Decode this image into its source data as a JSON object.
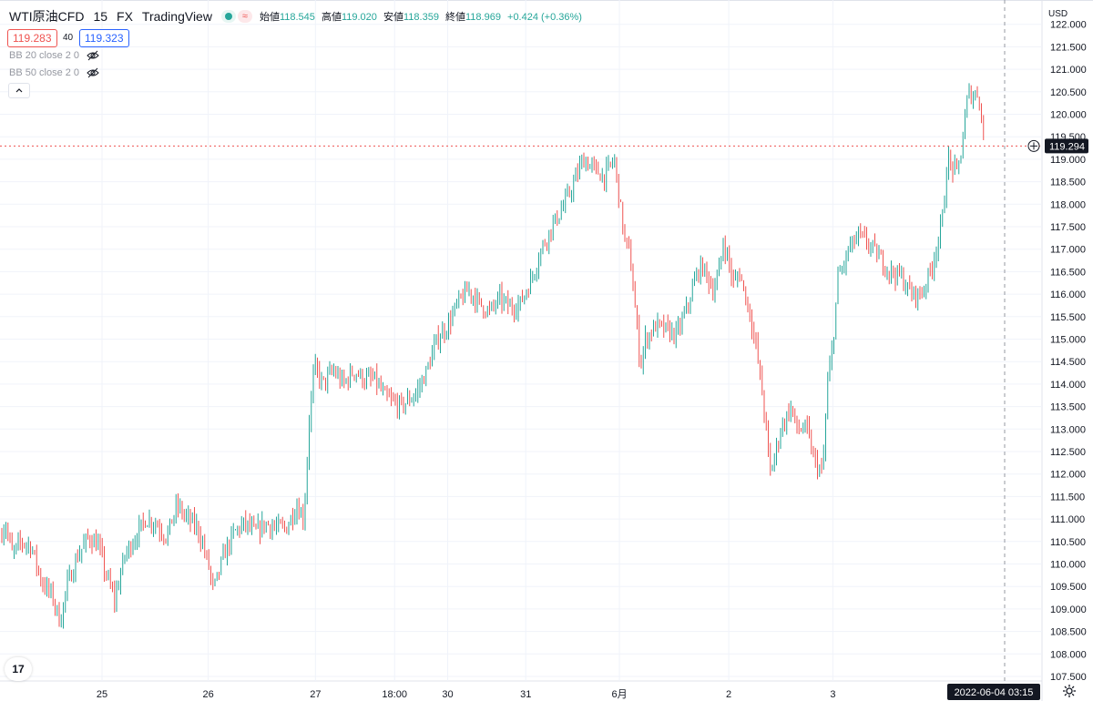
{
  "header": {
    "symbol": "WTI原油CFD",
    "interval": "15",
    "exchange": "FX",
    "source": "TradingView",
    "open_label": "始値",
    "open": "118.545",
    "high_label": "高値",
    "high": "119.020",
    "low_label": "安値",
    "low": "118.359",
    "close_label": "終値",
    "close": "118.969",
    "change": "+0.424 (+0.36%)"
  },
  "quote": {
    "bid": "119.283",
    "spread": "40",
    "ask": "119.323"
  },
  "indicators": [
    {
      "label": "BB 20 close 2 0",
      "icon": "eye-off-icon"
    },
    {
      "label": "BB 50 close 2 0",
      "icon": "eye-off-icon"
    }
  ],
  "axis": {
    "currency": "USD",
    "current_price": "119.294",
    "crosshair_time": "2022-06-04  03:15"
  },
  "colors": {
    "up": "#26a69a",
    "down": "#ef5350",
    "grid": "#f0f3fa",
    "crosshair": "#9598a1"
  },
  "chart_data": {
    "type": "candlestick",
    "y_axis": {
      "min": 107.5,
      "max": 121.5,
      "step": 0.5,
      "unit": "USD"
    },
    "y_tick_labels": [
      "107.500",
      "108.000",
      "108.500",
      "109.000",
      "109.500",
      "110.000",
      "110.500",
      "111.000",
      "111.500",
      "112.000",
      "112.500",
      "113.000",
      "113.500",
      "114.000",
      "114.500",
      "115.000",
      "115.500",
      "116.000",
      "116.500",
      "117.000",
      "117.500",
      "118.000",
      "118.500",
      "119.000",
      "119.500",
      "120.000",
      "120.500",
      "121.000",
      "121.500",
      "122.000"
    ],
    "x_tick_labels": [
      {
        "label": "25",
        "x": 0.098
      },
      {
        "label": "26",
        "x": 0.2
      },
      {
        "label": "27",
        "x": 0.303
      },
      {
        "label": "18:00",
        "x": 0.379
      },
      {
        "label": "30",
        "x": 0.43
      },
      {
        "label": "31",
        "x": 0.505
      },
      {
        "label": "6月",
        "x": 0.595
      },
      {
        "label": "2",
        "x": 0.7
      },
      {
        "label": "3",
        "x": 0.8
      }
    ],
    "close_path": [
      [
        0.0,
        110.6
      ],
      [
        0.005,
        110.9
      ],
      [
        0.012,
        110.2
      ],
      [
        0.02,
        110.5
      ],
      [
        0.03,
        110.4
      ],
      [
        0.04,
        109.6
      ],
      [
        0.05,
        109.3
      ],
      [
        0.058,
        108.7
      ],
      [
        0.064,
        109.5
      ],
      [
        0.075,
        110.2
      ],
      [
        0.085,
        110.6
      ],
      [
        0.095,
        110.4
      ],
      [
        0.1,
        109.9
      ],
      [
        0.11,
        109.2
      ],
      [
        0.12,
        110.2
      ],
      [
        0.13,
        110.6
      ],
      [
        0.14,
        111.0
      ],
      [
        0.15,
        110.9
      ],
      [
        0.16,
        110.6
      ],
      [
        0.17,
        111.3
      ],
      [
        0.18,
        111.0
      ],
      [
        0.19,
        110.8
      ],
      [
        0.2,
        110.0
      ],
      [
        0.205,
        109.4
      ],
      [
        0.215,
        110.2
      ],
      [
        0.225,
        110.7
      ],
      [
        0.235,
        110.9
      ],
      [
        0.245,
        110.7
      ],
      [
        0.255,
        110.9
      ],
      [
        0.265,
        110.8
      ],
      [
        0.275,
        110.8
      ],
      [
        0.285,
        111.3
      ],
      [
        0.292,
        111.0
      ],
      [
        0.297,
        113.2
      ],
      [
        0.302,
        114.4
      ],
      [
        0.31,
        114.0
      ],
      [
        0.32,
        114.3
      ],
      [
        0.33,
        114.0
      ],
      [
        0.34,
        114.3
      ],
      [
        0.35,
        114.1
      ],
      [
        0.36,
        114.1
      ],
      [
        0.37,
        113.7
      ],
      [
        0.385,
        113.5
      ],
      [
        0.4,
        113.8
      ],
      [
        0.41,
        114.3
      ],
      [
        0.42,
        115.0
      ],
      [
        0.43,
        115.3
      ],
      [
        0.44,
        115.8
      ],
      [
        0.45,
        116.1
      ],
      [
        0.46,
        115.8
      ],
      [
        0.47,
        115.6
      ],
      [
        0.48,
        115.9
      ],
      [
        0.49,
        115.7
      ],
      [
        0.5,
        115.8
      ],
      [
        0.51,
        116.3
      ],
      [
        0.52,
        117.0
      ],
      [
        0.53,
        117.5
      ],
      [
        0.54,
        117.9
      ],
      [
        0.55,
        118.4
      ],
      [
        0.56,
        119.0
      ],
      [
        0.57,
        118.8
      ],
      [
        0.58,
        118.6
      ],
      [
        0.59,
        119.0
      ],
      [
        0.595,
        118.1
      ],
      [
        0.6,
        117.2
      ],
      [
        0.605,
        116.9
      ],
      [
        0.612,
        115.2
      ],
      [
        0.615,
        114.4
      ],
      [
        0.62,
        115.0
      ],
      [
        0.63,
        115.3
      ],
      [
        0.64,
        115.2
      ],
      [
        0.65,
        115.1
      ],
      [
        0.66,
        115.7
      ],
      [
        0.67,
        116.5
      ],
      [
        0.675,
        116.6
      ],
      [
        0.685,
        116.1
      ],
      [
        0.69,
        116.4
      ],
      [
        0.695,
        117.2
      ],
      [
        0.7,
        116.7
      ],
      [
        0.705,
        116.2
      ],
      [
        0.71,
        116.5
      ],
      [
        0.72,
        115.6
      ],
      [
        0.725,
        115.0
      ],
      [
        0.73,
        114.2
      ],
      [
        0.735,
        113.2
      ],
      [
        0.74,
        112.0
      ],
      [
        0.75,
        113.0
      ],
      [
        0.76,
        113.5
      ],
      [
        0.765,
        113.0
      ],
      [
        0.775,
        113.0
      ],
      [
        0.782,
        112.3
      ],
      [
        0.79,
        112.0
      ],
      [
        0.795,
        114.0
      ],
      [
        0.8,
        114.9
      ],
      [
        0.805,
        116.4
      ],
      [
        0.81,
        116.6
      ],
      [
        0.815,
        117.0
      ],
      [
        0.825,
        117.3
      ],
      [
        0.835,
        117.1
      ],
      [
        0.845,
        116.8
      ],
      [
        0.855,
        116.5
      ],
      [
        0.865,
        116.4
      ],
      [
        0.875,
        116.0
      ],
      [
        0.885,
        116.0
      ],
      [
        0.895,
        116.6
      ],
      [
        0.905,
        117.6
      ],
      [
        0.91,
        119.0
      ],
      [
        0.915,
        118.8
      ],
      [
        0.92,
        118.7
      ],
      [
        0.925,
        119.5
      ],
      [
        0.93,
        120.5
      ],
      [
        0.935,
        120.4
      ],
      [
        0.94,
        120.5
      ],
      [
        0.945,
        119.4
      ]
    ],
    "crosshair": {
      "price": 119.294
    }
  }
}
